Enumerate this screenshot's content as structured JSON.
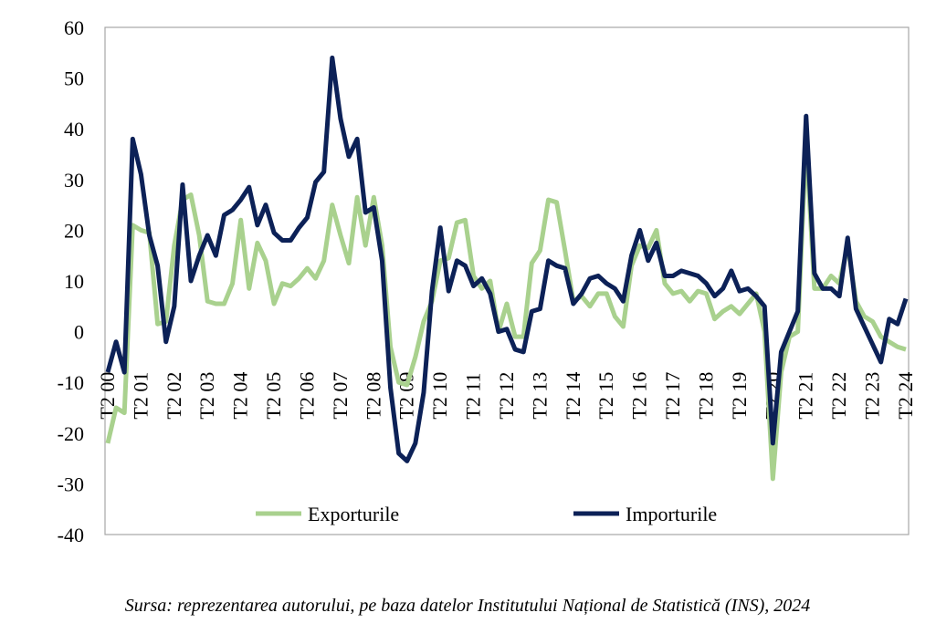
{
  "chart_data": {
    "type": "line",
    "categories": [
      "T2 00",
      null,
      null,
      null,
      "T2 01",
      null,
      null,
      null,
      "T2 02",
      null,
      null,
      null,
      "T2 03",
      null,
      null,
      null,
      "T2 04",
      null,
      null,
      null,
      "T2 05",
      null,
      null,
      null,
      "T2 06",
      null,
      null,
      null,
      "T2 07",
      null,
      null,
      null,
      "T2 08",
      null,
      null,
      null,
      "T2 09",
      null,
      null,
      null,
      "T2 10",
      null,
      null,
      null,
      "T2 11",
      null,
      null,
      null,
      "T2 12",
      null,
      null,
      null,
      "T2 13",
      null,
      null,
      null,
      "T2 14",
      null,
      null,
      null,
      "T2 15",
      null,
      null,
      null,
      "T2 16",
      null,
      null,
      null,
      "T2 17",
      null,
      null,
      null,
      "T2 18",
      null,
      null,
      null,
      "T2 19",
      null,
      null,
      null,
      "T2 20",
      null,
      null,
      null,
      "T2 21",
      null,
      null,
      null,
      "T2 22",
      null,
      null,
      null,
      "T2 23",
      null,
      null,
      null,
      "T2 24"
    ],
    "series": [
      {
        "name": "Exporturile",
        "color": "#a9d18e",
        "values": [
          -22,
          -15,
          -16,
          21,
          20,
          19.5,
          1.5,
          2,
          17,
          26,
          27,
          19,
          6,
          5.5,
          5.5,
          9.5,
          22,
          8.5,
          17.5,
          14,
          5.5,
          9.5,
          9,
          10.5,
          12.5,
          10.5,
          14,
          25,
          19,
          13.5,
          26.5,
          17,
          26.5,
          17,
          -3,
          -10,
          -10.5,
          -5,
          2,
          6,
          14,
          14.5,
          21.5,
          22,
          11,
          8.5,
          10,
          0,
          5.5,
          -1,
          -1,
          13.5,
          16,
          26,
          25.5,
          16,
          6,
          7,
          5,
          7.5,
          7.5,
          3,
          1,
          13,
          17,
          16.5,
          20,
          9.5,
          7.5,
          8,
          6,
          8,
          7.5,
          2.5,
          4,
          5,
          3.5,
          5.5,
          7.5,
          0,
          -29,
          -8,
          -1,
          0,
          38,
          8.5,
          8.5,
          11,
          9.5,
          17,
          6,
          3,
          2,
          -1,
          -2,
          -3,
          -3.5
        ]
      },
      {
        "name": "Importurile",
        "color": "#0c2157",
        "values": [
          -8,
          -2,
          -8,
          38,
          31,
          19,
          13,
          -2,
          5,
          29,
          10,
          15,
          19,
          15,
          23,
          24,
          26,
          28.5,
          21,
          25,
          19.5,
          18,
          18,
          20.5,
          22.5,
          29.5,
          31.5,
          54,
          42,
          34.5,
          38,
          23.5,
          24.5,
          14,
          -11,
          -24,
          -25.5,
          -22,
          -12,
          8,
          20.5,
          8,
          14,
          13,
          9,
          10.5,
          7.5,
          0,
          0.5,
          -3.5,
          -4,
          4,
          4.5,
          14,
          13,
          12.5,
          5.5,
          7.5,
          10.5,
          11,
          9.5,
          8.5,
          6,
          15,
          20,
          14,
          17.5,
          11,
          11,
          12,
          11.5,
          11,
          9.5,
          7,
          8.5,
          12,
          8,
          8.5,
          7,
          5,
          -22,
          -4,
          0,
          4,
          42.5,
          11.5,
          8.5,
          8.5,
          7,
          18.5,
          4.5,
          1,
          -2.5,
          -6,
          2.5,
          1.5,
          6.5
        ]
      }
    ],
    "ylim": [
      -40,
      60
    ],
    "yticks": [
      -40,
      -30,
      -20,
      -10,
      0,
      10,
      20,
      30,
      40,
      50,
      60
    ],
    "grid": false
  },
  "source": "Sursa: reprezentarea autorului, pe baza datelor Institutului Național de Statistică (INS), 2024"
}
